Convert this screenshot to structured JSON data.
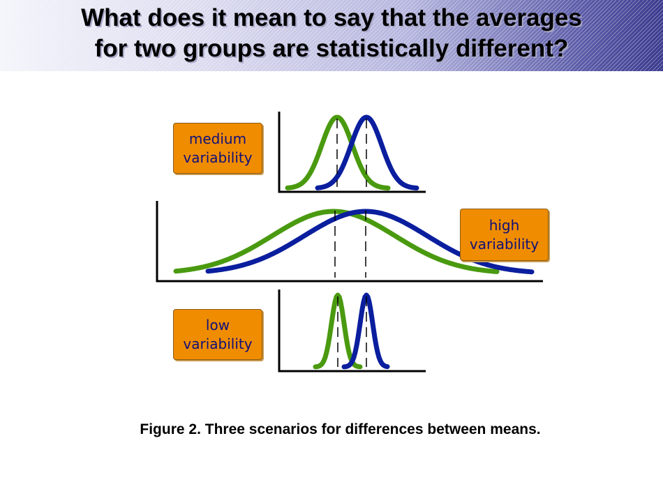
{
  "slide": {
    "title_line1": "What does it mean to say that the averages",
    "title_line2": "for two groups are statistically different?",
    "caption": "Figure 2. Three scenarios for differences between means."
  },
  "panels": [
    {
      "id": "medium",
      "label_line1": "medium",
      "label_line2": "variability"
    },
    {
      "id": "high",
      "label_line1": "high",
      "label_line2": "variability"
    },
    {
      "id": "low",
      "label_line1": "low",
      "label_line2": "variability"
    }
  ],
  "colors": {
    "group_a": "#4a9a10",
    "group_b": "#0a1e9e",
    "label_bg": "#f08c00",
    "label_text": "#10107a"
  }
}
